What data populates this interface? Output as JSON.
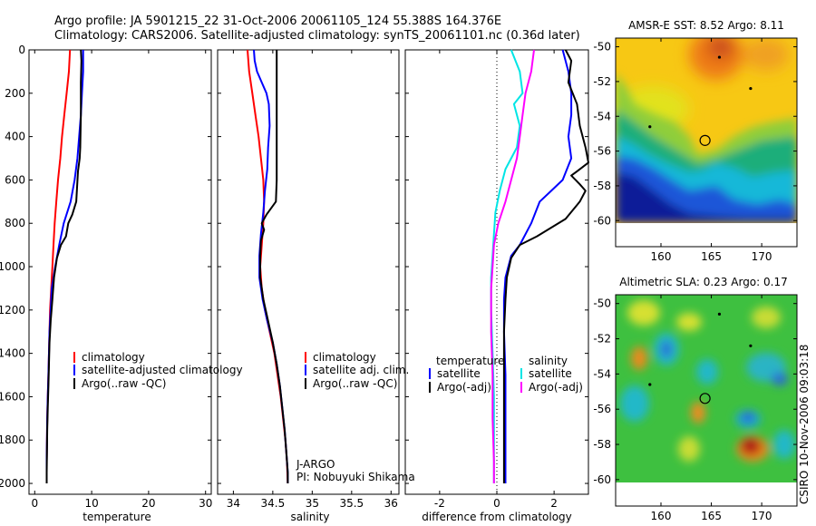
{
  "figure": {
    "title_line1": "Argo profile: JA 5901215_22 31-Oct-2006 20061105_124 55.388S 164.376E",
    "title_line2": "Climatology: CARS2006. Satellite-adjusted climatology: synTS_20061101.nc (0.36d later)",
    "credit": "CSIRO 10-Nov-2006 09:03:18",
    "jargo_line1": "J-ARGO",
    "jargo_line2": "PI: Nobuyuki Shikama"
  },
  "colors": {
    "red": "#ff0000",
    "blue": "#0000ff",
    "black": "#000000",
    "cyan": "#00e5e5",
    "magenta": "#ff00ff"
  },
  "chart_data": [
    {
      "id": "temperature",
      "type": "line",
      "xlabel": "temperature",
      "xlim": [
        -1,
        31
      ],
      "ylim": [
        0,
        2050
      ],
      "x_ticks": [
        0,
        10,
        20,
        30
      ],
      "y_ticks": [
        0,
        200,
        400,
        600,
        800,
        1000,
        1200,
        1400,
        1600,
        1800,
        2000
      ],
      "y_reversed": true,
      "legend": [
        "climatology",
        "satellite-adjusted climatology",
        "Argo(..raw -QC)"
      ],
      "series": [
        {
          "name": "climatology",
          "color": "red",
          "points": [
            [
              6.2,
              0
            ],
            [
              6.0,
              100
            ],
            [
              5.6,
              200
            ],
            [
              5.2,
              300
            ],
            [
              4.8,
              400
            ],
            [
              4.5,
              500
            ],
            [
              4.1,
              600
            ],
            [
              3.8,
              700
            ],
            [
              3.5,
              800
            ],
            [
              3.3,
              900
            ],
            [
              3.1,
              1000
            ],
            [
              2.9,
              1100
            ],
            [
              2.7,
              1200
            ],
            [
              2.6,
              1300
            ],
            [
              2.5,
              1400
            ],
            [
              2.4,
              1500
            ],
            [
              2.3,
              1600
            ],
            [
              2.2,
              1700
            ],
            [
              2.15,
              1800
            ],
            [
              2.1,
              1900
            ],
            [
              2.1,
              2000
            ]
          ]
        },
        {
          "name": "satellite-adjusted climatology",
          "color": "blue",
          "points": [
            [
              8.5,
              0
            ],
            [
              8.5,
              100
            ],
            [
              8.3,
              200
            ],
            [
              8.1,
              300
            ],
            [
              7.8,
              400
            ],
            [
              7.5,
              500
            ],
            [
              7.0,
              600
            ],
            [
              6.3,
              700
            ],
            [
              5.1,
              800
            ],
            [
              4.3,
              900
            ],
            [
              3.6,
              1000
            ],
            [
              3.0,
              1100
            ],
            [
              2.8,
              1200
            ],
            [
              2.6,
              1300
            ],
            [
              2.5,
              1400
            ],
            [
              2.4,
              1500
            ],
            [
              2.3,
              1600
            ],
            [
              2.2,
              1700
            ],
            [
              2.15,
              1800
            ],
            [
              2.1,
              1900
            ],
            [
              2.1,
              2000
            ]
          ]
        },
        {
          "name": "Argo(..raw -QC)",
          "color": "black",
          "points": [
            [
              8.1,
              0
            ],
            [
              8.2,
              50
            ],
            [
              8.1,
              150
            ],
            [
              8.1,
              300
            ],
            [
              8.0,
              450
            ],
            [
              7.9,
              500
            ],
            [
              7.6,
              560
            ],
            [
              7.3,
              700
            ],
            [
              6.6,
              760
            ],
            [
              5.9,
              800
            ],
            [
              5.5,
              860
            ],
            [
              4.6,
              900
            ],
            [
              3.9,
              960
            ],
            [
              3.4,
              1050
            ],
            [
              3.1,
              1150
            ],
            [
              2.8,
              1250
            ],
            [
              2.6,
              1350
            ],
            [
              2.5,
              1450
            ],
            [
              2.4,
              1550
            ],
            [
              2.3,
              1650
            ],
            [
              2.2,
              1750
            ],
            [
              2.15,
              1850
            ],
            [
              2.1,
              1950
            ],
            [
              2.1,
              2000
            ]
          ]
        }
      ]
    },
    {
      "id": "salinity",
      "type": "line",
      "xlabel": "salinity",
      "xlim": [
        33.8,
        36.1
      ],
      "ylim": [
        0,
        2050
      ],
      "x_ticks": [
        34,
        34.5,
        35,
        35.5,
        36
      ],
      "y_ticks": [
        0,
        200,
        400,
        600,
        800,
        1000,
        1200,
        1400,
        1600,
        1800,
        2000
      ],
      "y_reversed": true,
      "legend": [
        "climatology",
        "satellite adj. clim.",
        "Argo(..raw -QC)"
      ],
      "series": [
        {
          "name": "climatology",
          "color": "red",
          "points": [
            [
              34.18,
              0
            ],
            [
              34.2,
              100
            ],
            [
              34.24,
              200
            ],
            [
              34.28,
              300
            ],
            [
              34.32,
              400
            ],
            [
              34.35,
              500
            ],
            [
              34.38,
              600
            ],
            [
              34.39,
              700
            ],
            [
              34.38,
              800
            ],
            [
              34.36,
              900
            ],
            [
              34.34,
              1000
            ],
            [
              34.36,
              1100
            ],
            [
              34.4,
              1200
            ],
            [
              34.46,
              1300
            ],
            [
              34.52,
              1400
            ],
            [
              34.56,
              1500
            ],
            [
              34.6,
              1600
            ],
            [
              34.63,
              1700
            ],
            [
              34.66,
              1800
            ],
            [
              34.68,
              1900
            ],
            [
              34.69,
              2000
            ]
          ]
        },
        {
          "name": "satellite adj. clim.",
          "color": "blue",
          "points": [
            [
              34.26,
              0
            ],
            [
              34.27,
              50
            ],
            [
              34.3,
              100
            ],
            [
              34.36,
              150
            ],
            [
              34.42,
              200
            ],
            [
              34.45,
              250
            ],
            [
              34.46,
              350
            ],
            [
              34.44,
              450
            ],
            [
              34.43,
              550
            ],
            [
              34.4,
              650
            ],
            [
              34.38,
              750
            ],
            [
              34.35,
              850
            ],
            [
              34.33,
              950
            ],
            [
              34.33,
              1050
            ],
            [
              34.37,
              1150
            ],
            [
              34.43,
              1250
            ],
            [
              34.5,
              1350
            ],
            [
              34.55,
              1450
            ],
            [
              34.59,
              1550
            ],
            [
              34.62,
              1650
            ],
            [
              34.65,
              1750
            ],
            [
              34.67,
              1850
            ],
            [
              34.69,
              1950
            ],
            [
              34.69,
              2000
            ]
          ]
        },
        {
          "name": "Argo(..raw -QC)",
          "color": "black",
          "points": [
            [
              34.55,
              0
            ],
            [
              34.55,
              200
            ],
            [
              34.55,
              400
            ],
            [
              34.55,
              600
            ],
            [
              34.54,
              700
            ],
            [
              34.42,
              760
            ],
            [
              34.36,
              800
            ],
            [
              34.39,
              830
            ],
            [
              34.35,
              880
            ],
            [
              34.34,
              950
            ],
            [
              34.34,
              1050
            ],
            [
              34.38,
              1150
            ],
            [
              34.44,
              1250
            ],
            [
              34.5,
              1350
            ],
            [
              34.55,
              1450
            ],
            [
              34.59,
              1550
            ],
            [
              34.62,
              1650
            ],
            [
              34.65,
              1750
            ],
            [
              34.67,
              1850
            ],
            [
              34.69,
              1950
            ],
            [
              34.69,
              2000
            ]
          ]
        }
      ]
    },
    {
      "id": "difference",
      "type": "line",
      "xlabel": "difference from climatology",
      "xlim": [
        -3.2,
        3.2
      ],
      "ylim": [
        0,
        2050
      ],
      "x_ticks": [
        -2,
        0,
        2
      ],
      "y_ticks": [
        0,
        200,
        400,
        600,
        800,
        1000,
        1200,
        1400,
        1600,
        1800,
        2000
      ],
      "y_reversed": true,
      "zero_line": true,
      "legend_headers": [
        "temperature",
        "salinity"
      ],
      "legend": [
        "satellite",
        "Argo(-adj)",
        "satellite",
        "Argo(-adj)"
      ],
      "series": [
        {
          "name": "temperature satellite",
          "color": "blue",
          "points": [
            [
              2.3,
              0
            ],
            [
              2.5,
              100
            ],
            [
              2.6,
              200
            ],
            [
              2.6,
              300
            ],
            [
              2.5,
              400
            ],
            [
              2.6,
              500
            ],
            [
              2.3,
              600
            ],
            [
              1.9,
              650
            ],
            [
              1.5,
              700
            ],
            [
              1.2,
              800
            ],
            [
              0.8,
              900
            ],
            [
              0.5,
              950
            ],
            [
              0.3,
              1050
            ],
            [
              0.25,
              1150
            ],
            [
              0.25,
              1300
            ],
            [
              0.3,
              1500
            ],
            [
              0.3,
              1700
            ],
            [
              0.3,
              1900
            ],
            [
              0.3,
              2000
            ]
          ]
        },
        {
          "name": "temperature Argo(-adj)",
          "color": "black",
          "points": [
            [
              2.4,
              0
            ],
            [
              2.6,
              50
            ],
            [
              2.5,
              150
            ],
            [
              2.8,
              250
            ],
            [
              2.9,
              350
            ],
            [
              3.1,
              450
            ],
            [
              3.2,
              520
            ],
            [
              2.8,
              560
            ],
            [
              2.6,
              580
            ],
            [
              2.9,
              620
            ],
            [
              3.1,
              650
            ],
            [
              2.9,
              700
            ],
            [
              2.4,
              780
            ],
            [
              1.9,
              820
            ],
            [
              1.4,
              860
            ],
            [
              0.8,
              900
            ],
            [
              0.5,
              960
            ],
            [
              0.35,
              1050
            ],
            [
              0.3,
              1150
            ],
            [
              0.25,
              1300
            ],
            [
              0.25,
              1500
            ],
            [
              0.25,
              1700
            ],
            [
              0.25,
              1900
            ],
            [
              0.25,
              2000
            ]
          ]
        },
        {
          "name": "salinity satellite",
          "color": "cyan",
          "points": [
            [
              0.5,
              0
            ],
            [
              0.8,
              100
            ],
            [
              0.9,
              200
            ],
            [
              0.6,
              250
            ],
            [
              0.8,
              350
            ],
            [
              0.7,
              450
            ],
            [
              0.3,
              550
            ],
            [
              0.1,
              650
            ],
            [
              -0.05,
              750
            ],
            [
              -0.1,
              850
            ],
            [
              -0.15,
              950
            ],
            [
              -0.2,
              1050
            ],
            [
              -0.2,
              1200
            ],
            [
              -0.15,
              1400
            ],
            [
              -0.1,
              1600
            ],
            [
              -0.1,
              1800
            ],
            [
              -0.1,
              2000
            ]
          ]
        },
        {
          "name": "salinity Argo(-adj)",
          "color": "magenta",
          "points": [
            [
              1.3,
              0
            ],
            [
              1.2,
              100
            ],
            [
              1.0,
              200
            ],
            [
              0.9,
              300
            ],
            [
              0.8,
              400
            ],
            [
              0.7,
              500
            ],
            [
              0.5,
              600
            ],
            [
              0.3,
              700
            ],
            [
              0.05,
              800
            ],
            [
              -0.1,
              900
            ],
            [
              -0.15,
              1000
            ],
            [
              -0.2,
              1100
            ],
            [
              -0.2,
              1300
            ],
            [
              -0.15,
              1500
            ],
            [
              -0.15,
              1700
            ],
            [
              -0.1,
              1900
            ],
            [
              -0.1,
              2000
            ]
          ]
        }
      ]
    },
    {
      "id": "sst-map",
      "type": "heatmap",
      "title": "AMSR-E SST: 8.52 Argo: 8.11",
      "xlim": [
        155.5,
        173.5
      ],
      "ylim": [
        -61.5,
        -49.5
      ],
      "x_ticks": [
        160,
        165,
        170
      ],
      "y_ticks": [
        -50,
        -52,
        -54,
        -56,
        -58,
        -60
      ],
      "data_extent_ylim": [
        -60,
        -49.5
      ],
      "profile_location": [
        164.376,
        -55.388
      ]
    },
    {
      "id": "sla-map",
      "type": "heatmap",
      "title": "Altimetric SLA: 0.23 Argo: 0.17",
      "xlim": [
        155.5,
        173.5
      ],
      "ylim": [
        -61.5,
        -49.5
      ],
      "x_ticks": [
        160,
        165,
        170
      ],
      "y_ticks": [
        -50,
        -52,
        -54,
        -56,
        -58,
        -60
      ],
      "data_extent_ylim": [
        -60,
        -49.5
      ],
      "profile_location": [
        164.376,
        -55.388
      ]
    }
  ]
}
